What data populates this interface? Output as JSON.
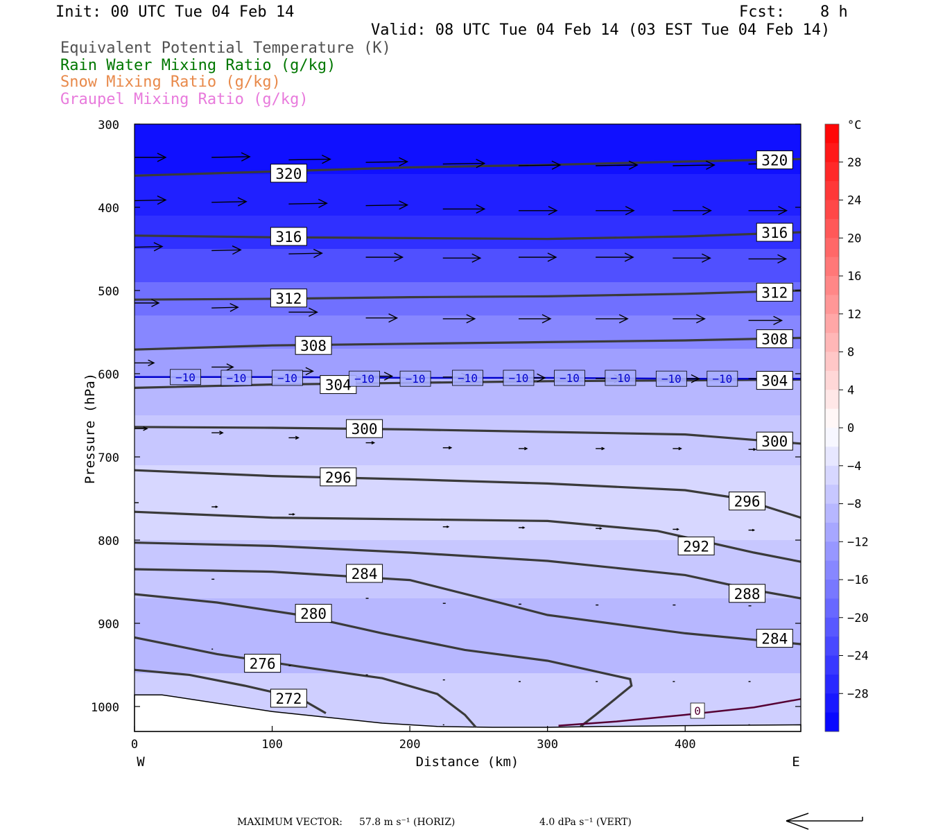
{
  "header": {
    "init": "Init: 00 UTC Tue 04 Feb 14",
    "fcst_label": "Fcst:",
    "fcst_value": "8 h",
    "valid": "Valid: 08 UTC Tue 04 Feb 14 (03 EST Tue 04 Feb 14)"
  },
  "legend": [
    {
      "text": "Equivalent Potential Temperature (K)",
      "color": "#505050"
    },
    {
      "text": "Rain Water Mixing Ratio (g/kg)",
      "color": "#007700"
    },
    {
      "text": "Snow Mixing Ratio (g/kg)",
      "color": "#e8894a"
    },
    {
      "text": "Graupel Mixing Ratio (g/kg)",
      "color": "#e87adc"
    }
  ],
  "axes": {
    "ylabel": "Pressure (hPa)",
    "xlabel": "Distance (km)",
    "west": "W",
    "east": "E",
    "y_ticks": [
      300,
      400,
      500,
      600,
      700,
      800,
      900,
      1000
    ],
    "x_ticks": [
      0,
      100,
      200,
      300,
      400
    ],
    "colorbar_unit": "°C",
    "colorbar_ticks": [
      "28",
      "24",
      "20",
      "16",
      "12",
      "8",
      "4",
      "0",
      "−4",
      "−8",
      "−12",
      "−16",
      "−20",
      "−24",
      "−28"
    ]
  },
  "footer": {
    "max_vector_label": "MAXIMUM VECTOR:",
    "horiz": "57.8 m s⁻¹ (HORIZ)",
    "vert": "4.0 dPa s⁻¹ (VERT)"
  },
  "chart_data": {
    "type": "cross-section",
    "xlim": [
      0,
      484
    ],
    "ylim": [
      1030,
      300
    ],
    "colorbar_range": [
      -32,
      32
    ],
    "theta_e_contours": [
      {
        "value": 320,
        "pts": [
          [
            0,
            362
          ],
          [
            100,
            357
          ],
          [
            200,
            352
          ],
          [
            300,
            349
          ],
          [
            400,
            345
          ],
          [
            484,
            342
          ]
        ],
        "labels": [
          [
            112,
            359
          ],
          [
            465,
            343
          ]
        ]
      },
      {
        "value": 316,
        "pts": [
          [
            0,
            434
          ],
          [
            100,
            436
          ],
          [
            200,
            437
          ],
          [
            300,
            438
          ],
          [
            400,
            435
          ],
          [
            484,
            430
          ]
        ],
        "labels": [
          [
            112,
            435
          ],
          [
            465,
            430
          ]
        ]
      },
      {
        "value": 312,
        "pts": [
          [
            0,
            511
          ],
          [
            100,
            510
          ],
          [
            200,
            508
          ],
          [
            300,
            507
          ],
          [
            400,
            504
          ],
          [
            484,
            500
          ]
        ],
        "labels": [
          [
            112,
            509
          ],
          [
            465,
            502
          ]
        ]
      },
      {
        "value": 308,
        "pts": [
          [
            0,
            571
          ],
          [
            100,
            566
          ],
          [
            200,
            564
          ],
          [
            300,
            562
          ],
          [
            400,
            560
          ],
          [
            484,
            557
          ]
        ],
        "labels": [
          [
            130,
            566
          ],
          [
            465,
            558
          ]
        ]
      },
      {
        "value": 304,
        "pts": [
          [
            0,
            617
          ],
          [
            100,
            613
          ],
          [
            200,
            611
          ],
          [
            300,
            609
          ],
          [
            400,
            608
          ],
          [
            484,
            607
          ]
        ],
        "labels": [
          [
            148,
            613
          ],
          [
            465,
            608
          ]
        ]
      },
      {
        "value": 300,
        "pts": [
          [
            0,
            664
          ],
          [
            100,
            665
          ],
          [
            200,
            667
          ],
          [
            300,
            670
          ],
          [
            400,
            673
          ],
          [
            484,
            684
          ]
        ],
        "labels": [
          [
            167,
            666
          ],
          [
            465,
            681
          ]
        ]
      },
      {
        "value": 296,
        "pts": [
          [
            0,
            716
          ],
          [
            100,
            723
          ],
          [
            200,
            727
          ],
          [
            300,
            732
          ],
          [
            400,
            740
          ],
          [
            440,
            750
          ],
          [
            484,
            773
          ]
        ],
        "labels": [
          [
            148,
            724
          ],
          [
            445,
            753
          ]
        ]
      },
      {
        "value": 292,
        "pts": [
          [
            0,
            766
          ],
          [
            100,
            773
          ],
          [
            200,
            775
          ],
          [
            300,
            777
          ],
          [
            380,
            789
          ],
          [
            450,
            815
          ],
          [
            484,
            826
          ]
        ],
        "labels": [
          [
            408,
            807
          ]
        ]
      },
      {
        "value": 288,
        "pts": [
          [
            0,
            803
          ],
          [
            100,
            807
          ],
          [
            200,
            815
          ],
          [
            300,
            825
          ],
          [
            400,
            842
          ],
          [
            450,
            860
          ],
          [
            484,
            870
          ]
        ],
        "labels": [
          [
            445,
            864
          ]
        ]
      },
      {
        "value": 284,
        "pts": [
          [
            0,
            835
          ],
          [
            100,
            838
          ],
          [
            200,
            848
          ],
          [
            260,
            873
          ],
          [
            300,
            890
          ],
          [
            400,
            912
          ],
          [
            484,
            925
          ]
        ],
        "labels": [
          [
            167,
            840
          ],
          [
            465,
            918
          ]
        ]
      },
      {
        "value": 280,
        "pts": [
          [
            0,
            865
          ],
          [
            60,
            875
          ],
          [
            120,
            890
          ],
          [
            180,
            912
          ],
          [
            240,
            932
          ],
          [
            300,
            945
          ],
          [
            360,
            967
          ],
          [
            361,
            975
          ],
          [
            335,
            1010
          ],
          [
            324,
            1024
          ]
        ],
        "labels": [
          [
            130,
            888
          ]
        ]
      },
      {
        "value": 276,
        "pts": [
          [
            0,
            917
          ],
          [
            60,
            937
          ],
          [
            120,
            952
          ],
          [
            180,
            966
          ],
          [
            220,
            985
          ],
          [
            240,
            1010
          ],
          [
            248,
            1025
          ]
        ],
        "labels": [
          [
            93,
            948
          ]
        ]
      },
      {
        "value": 272,
        "pts": [
          [
            0,
            956
          ],
          [
            40,
            962
          ],
          [
            80,
            975
          ],
          [
            120,
            990
          ],
          [
            139,
            1008
          ]
        ],
        "labels": [
          [
            112,
            990
          ]
        ]
      }
    ],
    "isotherms": [
      {
        "value": -10,
        "pts": [
          [
            0,
            604
          ],
          [
            100,
            604
          ],
          [
            200,
            605
          ],
          [
            300,
            605
          ],
          [
            400,
            606
          ],
          [
            484,
            606
          ]
        ],
        "labels": [
          [
            37,
            604
          ],
          [
            74,
            605
          ],
          [
            111,
            605
          ],
          [
            167,
            606
          ],
          [
            204,
            606
          ],
          [
            242,
            605
          ],
          [
            279,
            605
          ],
          [
            316,
            605
          ],
          [
            353,
            605
          ],
          [
            390,
            606
          ],
          [
            427,
            606
          ]
        ]
      },
      {
        "value": 0,
        "pts": [
          [
            308,
            1023
          ],
          [
            350,
            1018
          ],
          [
            400,
            1010
          ],
          [
            450,
            1001
          ],
          [
            484,
            991
          ]
        ],
        "labels": [
          [
            409,
            1005
          ]
        ]
      }
    ],
    "wind_vectors": [
      [
        0,
        340,
        45,
        0
      ],
      [
        56,
        340,
        55,
        -1
      ],
      [
        112,
        343,
        60,
        -1
      ],
      [
        168,
        346,
        60,
        -1
      ],
      [
        224,
        348,
        60,
        -1
      ],
      [
        279,
        350,
        60,
        -1
      ],
      [
        335,
        350,
        60,
        -1
      ],
      [
        391,
        350,
        60,
        -1
      ],
      [
        446,
        348,
        55,
        -1
      ],
      [
        0,
        392,
        45,
        -1
      ],
      [
        56,
        394,
        50,
        -1
      ],
      [
        112,
        396,
        55,
        -1
      ],
      [
        168,
        398,
        60,
        -1
      ],
      [
        224,
        402,
        60,
        0
      ],
      [
        279,
        404,
        55,
        0
      ],
      [
        335,
        404,
        55,
        0
      ],
      [
        391,
        404,
        55,
        0
      ],
      [
        446,
        404,
        55,
        0
      ],
      [
        0,
        448,
        40,
        -1
      ],
      [
        56,
        452,
        42,
        -1
      ],
      [
        112,
        456,
        48,
        -1
      ],
      [
        168,
        460,
        53,
        0
      ],
      [
        224,
        461,
        54,
        0
      ],
      [
        279,
        460,
        54,
        0
      ],
      [
        335,
        460,
        54,
        0
      ],
      [
        391,
        461,
        54,
        0
      ],
      [
        446,
        462,
        54,
        0
      ],
      [
        0,
        515,
        35,
        0
      ],
      [
        56,
        521,
        38,
        -1
      ],
      [
        112,
        526,
        41,
        0
      ],
      [
        168,
        533,
        45,
        0
      ],
      [
        224,
        534,
        46,
        0
      ],
      [
        279,
        534,
        46,
        0
      ],
      [
        335,
        534,
        46,
        0
      ],
      [
        391,
        534,
        46,
        0
      ],
      [
        446,
        536,
        48,
        0
      ],
      [
        0,
        587,
        28,
        0
      ],
      [
        56,
        592,
        31,
        0
      ],
      [
        112,
        597,
        35,
        0
      ],
      [
        168,
        603,
        38,
        0
      ],
      [
        224,
        604,
        38,
        0
      ],
      [
        279,
        605,
        38,
        0
      ],
      [
        335,
        606,
        38,
        0
      ],
      [
        391,
        606,
        38,
        0
      ],
      [
        446,
        606,
        38,
        0
      ],
      [
        0,
        666,
        18,
        0
      ],
      [
        56,
        671,
        16,
        0
      ],
      [
        112,
        677,
        14,
        0
      ],
      [
        168,
        683,
        12,
        0
      ],
      [
        224,
        689,
        12,
        0
      ],
      [
        279,
        690,
        12,
        0
      ],
      [
        335,
        690,
        12,
        0
      ],
      [
        391,
        690,
        12,
        0
      ],
      [
        446,
        691,
        10,
        0
      ],
      [
        0,
        755,
        6,
        0
      ],
      [
        56,
        760,
        8,
        0
      ],
      [
        112,
        769,
        8,
        0
      ],
      [
        224,
        784,
        8,
        0
      ],
      [
        279,
        785,
        8,
        0
      ],
      [
        335,
        786,
        8,
        0
      ],
      [
        391,
        787,
        8,
        0
      ],
      [
        446,
        788,
        8,
        0
      ],
      [
        56,
        847,
        4,
        0
      ],
      [
        168,
        870,
        4,
        0
      ],
      [
        224,
        876,
        4,
        0
      ],
      [
        279,
        877,
        4,
        0
      ],
      [
        335,
        878,
        4,
        0
      ],
      [
        391,
        878,
        4,
        0
      ],
      [
        446,
        879,
        4,
        0
      ],
      [
        56,
        931,
        2,
        0
      ],
      [
        112,
        951,
        3,
        0
      ],
      [
        168,
        962,
        3,
        0
      ],
      [
        224,
        968,
        3,
        0
      ],
      [
        279,
        970,
        3,
        0
      ],
      [
        335,
        970,
        3,
        0
      ],
      [
        391,
        970,
        3,
        0
      ],
      [
        446,
        970,
        3,
        0
      ],
      [
        224,
        1022,
        2,
        0
      ],
      [
        446,
        1022,
        2,
        0
      ]
    ],
    "shading_bands": [
      {
        "p_top": 300,
        "p_bot": 360,
        "temp": -30
      },
      {
        "p_top": 360,
        "p_bot": 410,
        "temp": -28
      },
      {
        "p_top": 410,
        "p_bot": 450,
        "temp": -26
      },
      {
        "p_top": 450,
        "p_bot": 490,
        "temp": -22
      },
      {
        "p_top": 490,
        "p_bot": 530,
        "temp": -18
      },
      {
        "p_top": 530,
        "p_bot": 570,
        "temp": -15
      },
      {
        "p_top": 570,
        "p_bot": 605,
        "temp": -12
      },
      {
        "p_top": 605,
        "p_bot": 650,
        "temp": -9
      },
      {
        "p_top": 650,
        "p_bot": 710,
        "temp": -7
      },
      {
        "p_top": 710,
        "p_bot": 800,
        "temp": -5
      },
      {
        "p_top": 800,
        "p_bot": 870,
        "temp": -7
      },
      {
        "p_top": 870,
        "p_bot": 960,
        "temp": -9
      },
      {
        "p_top": 960,
        "p_bot": 1030,
        "temp": -6
      }
    ],
    "surface_pressure": [
      [
        0,
        986
      ],
      [
        20,
        986
      ],
      [
        60,
        996
      ],
      [
        100,
        1006
      ],
      [
        140,
        1013
      ],
      [
        180,
        1020
      ],
      [
        220,
        1024
      ],
      [
        260,
        1025
      ],
      [
        300,
        1025
      ],
      [
        340,
        1024
      ],
      [
        400,
        1023
      ],
      [
        484,
        1022
      ]
    ]
  }
}
